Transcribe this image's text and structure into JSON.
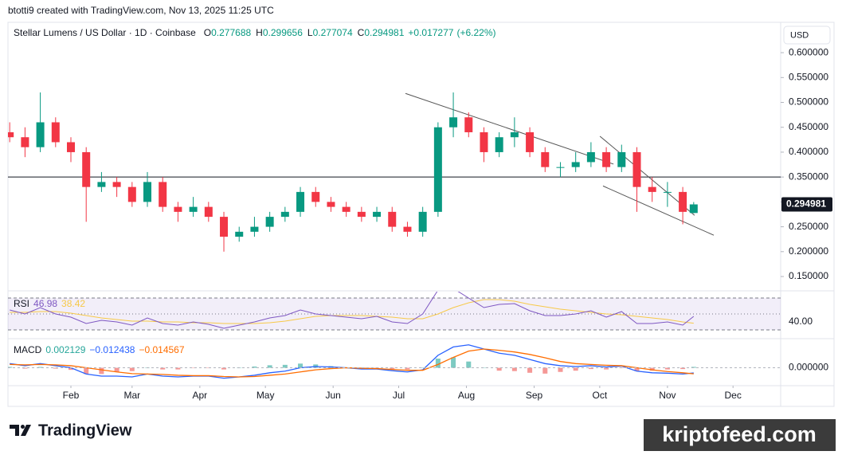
{
  "header": "btotti9 created with TradingView.com, Nov 13, 2025 11:25 UTC",
  "brand": "TradingView",
  "watermark": "kriptofeed.com",
  "chart_data": {
    "type": "candlestick",
    "title": "Stellar Lumens / US Dollar · 1D · Coinbase",
    "ohlc_keys": [
      "O",
      "H",
      "L",
      "C"
    ],
    "change": {
      "value": 0.017277,
      "label": "+0.017277"
    },
    "change_pct": {
      "value": 6.22,
      "label": "(+6.22%)"
    },
    "currency": "USD",
    "x": [
      3,
      10,
      17,
      24,
      31,
      38,
      45,
      52,
      59,
      66,
      73,
      80,
      87,
      94,
      101,
      108,
      115,
      122,
      129,
      136,
      143,
      150,
      157,
      164,
      171,
      178,
      185,
      192,
      199,
      206,
      213,
      220,
      227,
      234,
      241,
      248,
      255,
      262,
      269,
      276,
      283,
      290,
      297,
      304,
      311,
      316
    ],
    "open": [
      0.44,
      0.43,
      0.41,
      0.46,
      0.42,
      0.4,
      0.33,
      0.34,
      0.33,
      0.3,
      0.34,
      0.29,
      0.28,
      0.29,
      0.27,
      0.23,
      0.24,
      0.25,
      0.27,
      0.28,
      0.32,
      0.3,
      0.29,
      0.28,
      0.27,
      0.28,
      0.25,
      0.24,
      0.28,
      0.45,
      0.47,
      0.44,
      0.4,
      0.43,
      0.44,
      0.4,
      0.37,
      0.37,
      0.38,
      0.4,
      0.37,
      0.4,
      0.33,
      0.32,
      0.32,
      0.277688
    ],
    "high": [
      0.46,
      0.45,
      0.52,
      0.47,
      0.43,
      0.41,
      0.36,
      0.35,
      0.34,
      0.36,
      0.35,
      0.3,
      0.31,
      0.3,
      0.28,
      0.25,
      0.27,
      0.28,
      0.29,
      0.33,
      0.33,
      0.31,
      0.3,
      0.29,
      0.29,
      0.29,
      0.26,
      0.29,
      0.46,
      0.52,
      0.48,
      0.45,
      0.44,
      0.47,
      0.45,
      0.41,
      0.38,
      0.4,
      0.42,
      0.41,
      0.415,
      0.41,
      0.35,
      0.34,
      0.33,
      0.299656
    ],
    "low": [
      0.42,
      0.39,
      0.4,
      0.41,
      0.38,
      0.26,
      0.32,
      0.31,
      0.29,
      0.29,
      0.28,
      0.26,
      0.27,
      0.26,
      0.2,
      0.22,
      0.23,
      0.24,
      0.26,
      0.27,
      0.29,
      0.28,
      0.27,
      0.26,
      0.26,
      0.24,
      0.23,
      0.23,
      0.27,
      0.43,
      0.43,
      0.38,
      0.39,
      0.41,
      0.39,
      0.36,
      0.35,
      0.36,
      0.37,
      0.36,
      0.36,
      0.28,
      0.3,
      0.29,
      0.255,
      0.277074
    ],
    "close": [
      0.43,
      0.41,
      0.46,
      0.42,
      0.4,
      0.33,
      0.34,
      0.33,
      0.3,
      0.34,
      0.29,
      0.28,
      0.29,
      0.27,
      0.23,
      0.24,
      0.25,
      0.27,
      0.28,
      0.32,
      0.3,
      0.29,
      0.28,
      0.27,
      0.28,
      0.25,
      0.24,
      0.28,
      0.45,
      0.47,
      0.44,
      0.4,
      0.43,
      0.44,
      0.4,
      0.37,
      0.37,
      0.38,
      0.4,
      0.37,
      0.4,
      0.33,
      0.32,
      0.32,
      0.28,
      0.294981
    ],
    "up_color": "#089981",
    "down_color": "#f23645",
    "xlim": [
      2.2,
      355.8
    ],
    "xticks": [
      {
        "value": 31,
        "label": "Feb"
      },
      {
        "value": 59,
        "label": "Mar"
      },
      {
        "value": 90,
        "label": "Apr"
      },
      {
        "value": 120,
        "label": "May"
      },
      {
        "value": 151,
        "label": "Jun"
      },
      {
        "value": 181,
        "label": "Jul"
      },
      {
        "value": 212,
        "label": "Aug"
      },
      {
        "value": 243,
        "label": "Sep"
      },
      {
        "value": 273,
        "label": "Oct"
      },
      {
        "value": 304,
        "label": "Nov"
      },
      {
        "value": 334,
        "label": "Dec"
      }
    ],
    "ylim": [
      0.126,
      0.661
    ],
    "yticks": [
      {
        "value": 0.15,
        "label": "0.150000"
      },
      {
        "value": 0.2,
        "label": "0.200000"
      },
      {
        "value": 0.25,
        "label": "0.250000"
      },
      {
        "value": 0.3,
        "label": "0.300000"
      },
      {
        "value": 0.35,
        "label": "0.350000"
      },
      {
        "value": 0.4,
        "label": "0.400000"
      },
      {
        "value": 0.45,
        "label": "0.450000"
      },
      {
        "value": 0.5,
        "label": "0.500000"
      },
      {
        "value": 0.55,
        "label": "0.550000"
      },
      {
        "value": 0.6,
        "label": "0.600000"
      }
    ],
    "hline": 0.35,
    "trendlines": [
      [
        [
          184.1,
          0.518
        ],
        [
          279.3,
          0.376
        ]
      ],
      [
        [
          273.1,
          0.432
        ],
        [
          316.4,
          0.273
        ]
      ],
      [
        [
          274.5,
          0.332
        ],
        [
          325.2,
          0.233
        ]
      ]
    ],
    "rsi": {
      "name": "RSI",
      "color": "#7e57c2",
      "ma_color": "#f7c948",
      "values": [
        55,
        50,
        58,
        50,
        46,
        38,
        42,
        40,
        36,
        45,
        38,
        36,
        40,
        37,
        32,
        36,
        40,
        45,
        48,
        55,
        50,
        48,
        46,
        44,
        47,
        40,
        38,
        50,
        80,
        82,
        70,
        58,
        62,
        63,
        54,
        48,
        48,
        50,
        54,
        46,
        53,
        38,
        38,
        40,
        36,
        46.98
      ],
      "ma": [
        52,
        52,
        53,
        53,
        51,
        48,
        45,
        43,
        41,
        41,
        40,
        40,
        39,
        39,
        38,
        38,
        38,
        39,
        41,
        44,
        47,
        48,
        48,
        48,
        47,
        46,
        44,
        44,
        50,
        58,
        64,
        68,
        68,
        66,
        62,
        59,
        56,
        54,
        52,
        50,
        49,
        47,
        45,
        43,
        40,
        38.42
      ],
      "levels": [
        70,
        50,
        30
      ],
      "ylim": [
        20,
        78
      ],
      "yticks": [
        {
          "value": 40,
          "label": "40.00"
        }
      ]
    },
    "macd": {
      "name": "MACD",
      "macd_color": "#2962ff",
      "signal_color": "#ff6d00",
      "hist_up": "#26a69a",
      "hist_down": "#ef5350",
      "hist": [
        0.002,
        -0.002,
        0.002,
        -0.002,
        -0.005,
        -0.015,
        -0.015,
        -0.01,
        -0.008,
        0,
        -0.004,
        -0.004,
        -0.001,
        -0.001,
        -0.004,
        0,
        0.003,
        0.006,
        0.007,
        0.01,
        0.008,
        0.004,
        0,
        -0.002,
        -0.001,
        -0.003,
        -0.004,
        0.001,
        0.022,
        0.025,
        0.015,
        0,
        -0.007,
        -0.008,
        -0.012,
        -0.014,
        -0.01,
        -0.007,
        -0.003,
        -0.004,
        -0.001,
        -0.008,
        -0.007,
        -0.004,
        -0.003,
        0.002129
      ],
      "macd": [
        0.01,
        0.005,
        0.01,
        0.005,
        0,
        -0.015,
        -0.02,
        -0.02,
        -0.022,
        -0.015,
        -0.02,
        -0.022,
        -0.02,
        -0.02,
        -0.025,
        -0.022,
        -0.018,
        -0.012,
        -0.008,
        0,
        0.003,
        0.002,
        0,
        -0.003,
        -0.003,
        -0.007,
        -0.01,
        -0.005,
        0.03,
        0.05,
        0.055,
        0.045,
        0.035,
        0.03,
        0.02,
        0.01,
        0.005,
        0.003,
        0.005,
        0.002,
        0.004,
        -0.008,
        -0.012,
        -0.013,
        -0.015,
        {
          "value": -0.012438,
          "label": "−0.012438"
        }
      ],
      "signal": [
        0.008,
        0.007,
        0.008,
        0.007,
        0.005,
        0,
        -0.005,
        -0.01,
        -0.014,
        -0.015,
        -0.016,
        -0.018,
        -0.019,
        -0.019,
        -0.021,
        -0.022,
        -0.021,
        -0.018,
        -0.015,
        -0.01,
        -0.005,
        -0.002,
        0,
        -0.001,
        -0.002,
        -0.004,
        -0.006,
        -0.006,
        0.008,
        0.025,
        0.04,
        0.045,
        0.042,
        0.038,
        0.032,
        0.024,
        0.015,
        0.01,
        0.008,
        0.006,
        0.005,
        0,
        -0.005,
        -0.009,
        -0.012,
        {
          "value": -0.014567,
          "label": "−0.014567"
        }
      ],
      "ylim": [
        -0.043,
        0.068
      ],
      "yticks": [
        {
          "value": 0,
          "label": "0.000000"
        }
      ]
    }
  }
}
